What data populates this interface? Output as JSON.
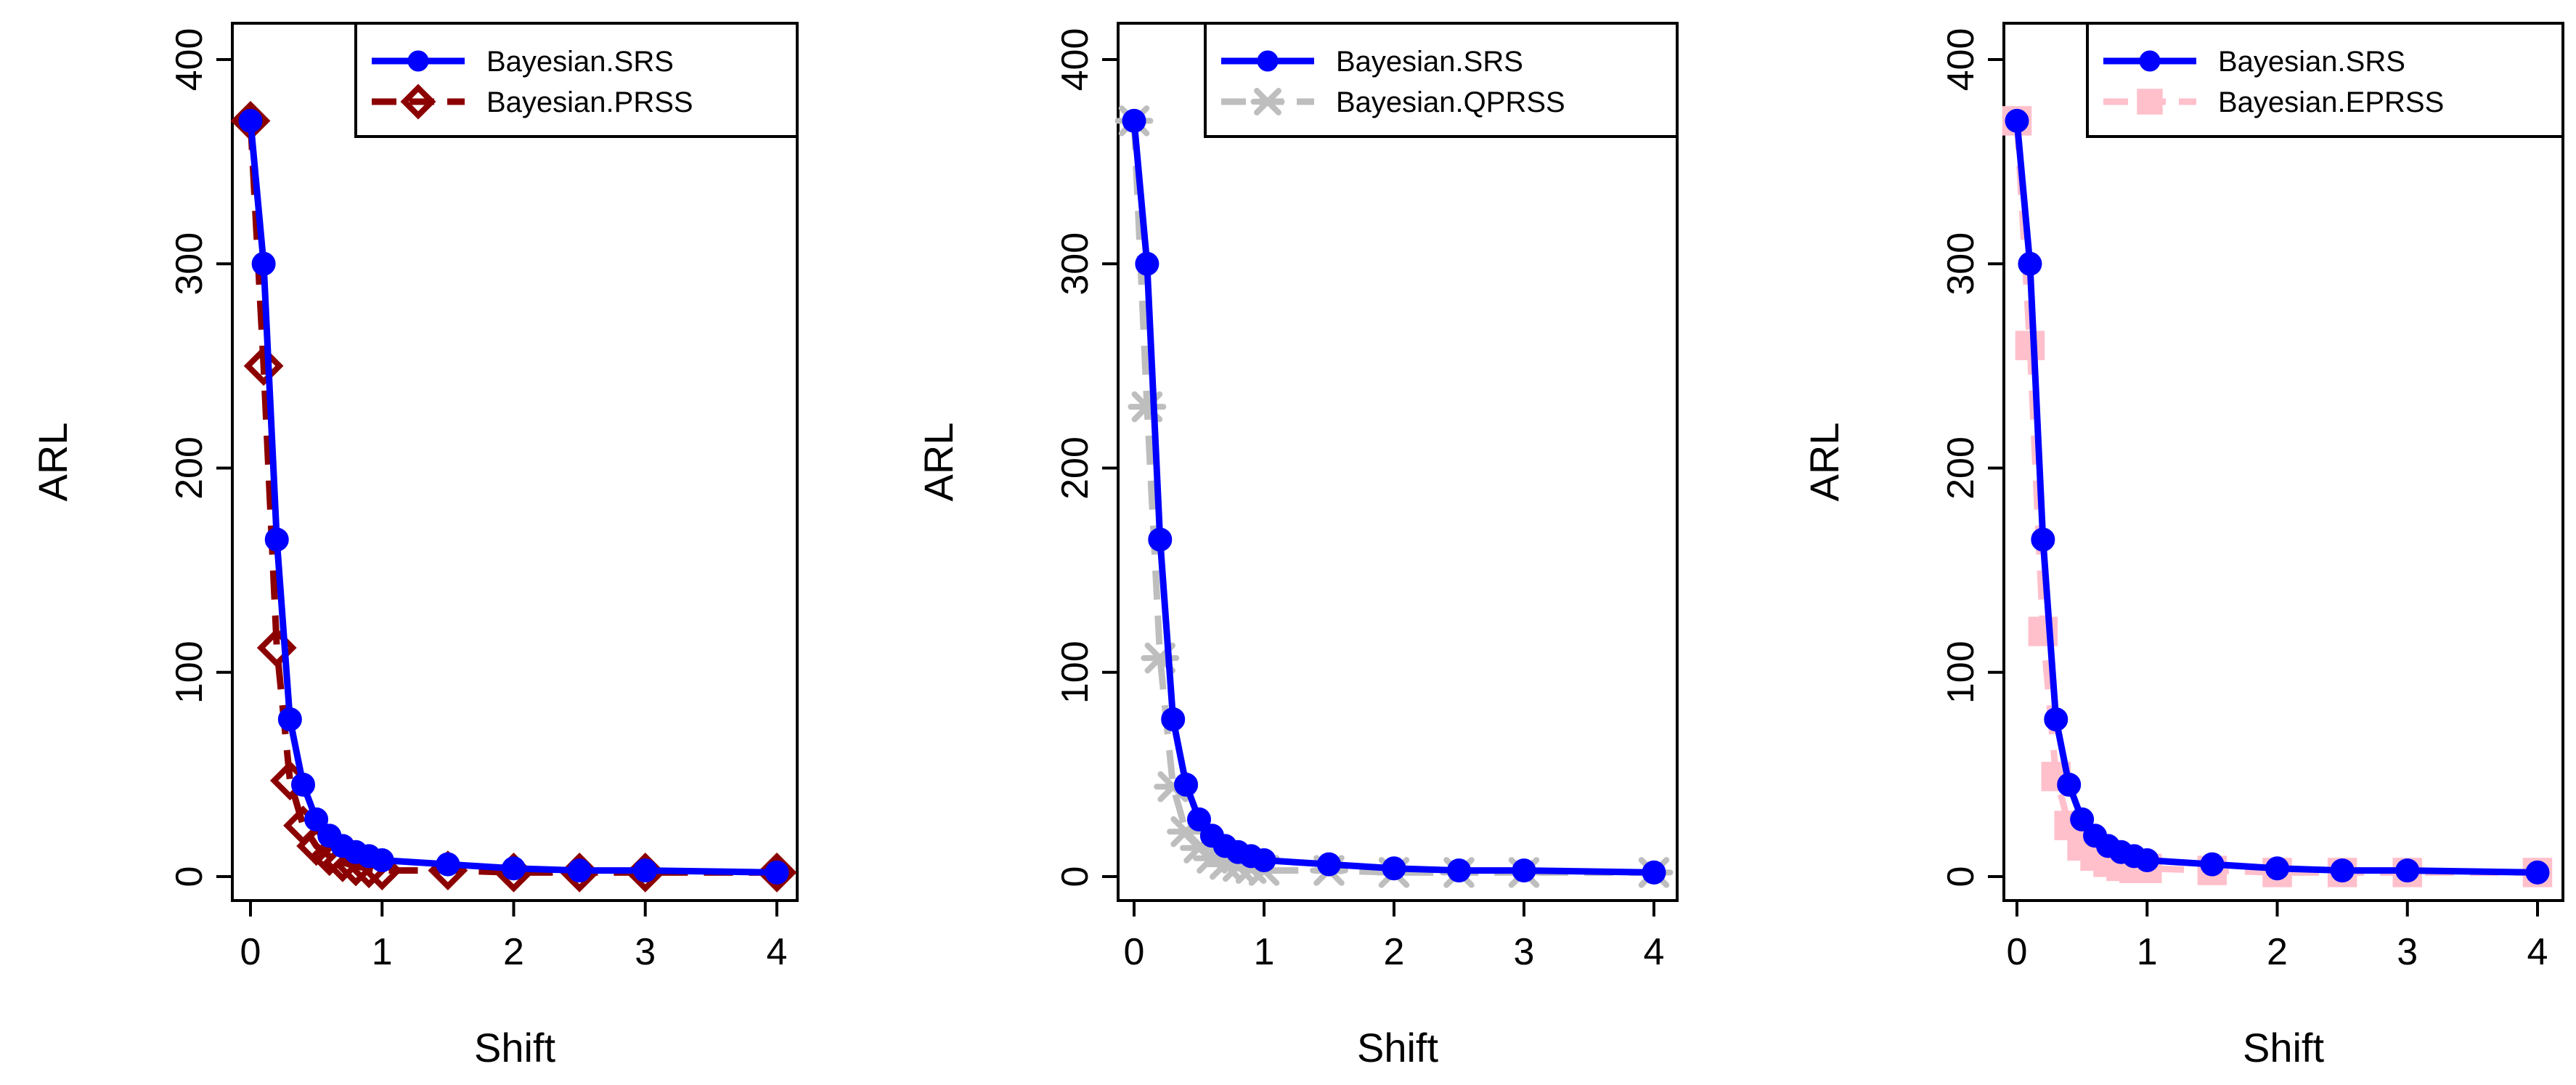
{
  "chart_data": [
    {
      "type": "line",
      "xlabel": "Shift",
      "ylabel": "ARL",
      "xlim": [
        0,
        4
      ],
      "ylim": [
        0,
        400
      ],
      "xticks": [
        "0",
        "1",
        "2",
        "3",
        "4"
      ],
      "yticks": [
        "0",
        "100",
        "200",
        "300",
        "400"
      ],
      "legend_position": "top-right",
      "grid": false,
      "series": [
        {
          "name": "Bayesian.SRS",
          "color": "#0000ff",
          "line_style": "solid",
          "marker": "filled-circle",
          "x": [
            0,
            0.1,
            0.2,
            0.3,
            0.4,
            0.5,
            0.6,
            0.7,
            0.8,
            0.9,
            1,
            1.5,
            2,
            2.5,
            3,
            4
          ],
          "y": [
            370,
            300,
            165,
            77,
            45,
            28,
            20,
            15,
            12,
            10,
            8,
            6,
            4,
            3,
            3,
            2
          ]
        },
        {
          "name": "Bayesian.PRSS",
          "color": "#8b0000",
          "line_style": "dashed",
          "marker": "diamond",
          "x": [
            0,
            0.1,
            0.2,
            0.3,
            0.4,
            0.5,
            0.6,
            0.7,
            0.8,
            0.9,
            1,
            1.5,
            2,
            2.5,
            3,
            4
          ],
          "y": [
            370,
            250,
            112,
            47,
            25,
            15,
            10,
            7,
            5,
            4,
            3,
            3,
            2,
            2,
            2,
            2
          ]
        }
      ]
    },
    {
      "type": "line",
      "xlabel": "Shift",
      "ylabel": "ARL",
      "xlim": [
        0,
        4
      ],
      "ylim": [
        0,
        400
      ],
      "xticks": [
        "0",
        "1",
        "2",
        "3",
        "4"
      ],
      "yticks": [
        "0",
        "100",
        "200",
        "300",
        "400"
      ],
      "legend_position": "top-right",
      "grid": false,
      "series": [
        {
          "name": "Bayesian.SRS",
          "color": "#0000ff",
          "line_style": "solid",
          "marker": "filled-circle",
          "x": [
            0,
            0.1,
            0.2,
            0.3,
            0.4,
            0.5,
            0.6,
            0.7,
            0.8,
            0.9,
            1,
            1.5,
            2,
            2.5,
            3,
            4
          ],
          "y": [
            370,
            300,
            165,
            77,
            45,
            28,
            20,
            15,
            12,
            10,
            8,
            6,
            4,
            3,
            3,
            2
          ]
        },
        {
          "name": "Bayesian.QPRSS",
          "color": "#bebebe",
          "line_style": "dashed",
          "marker": "asterisk",
          "x": [
            0,
            0.1,
            0.2,
            0.3,
            0.4,
            0.5,
            0.6,
            0.7,
            0.8,
            0.9,
            1,
            1.5,
            2,
            2.5,
            3,
            4
          ],
          "y": [
            370,
            230,
            107,
            44,
            22,
            14,
            9,
            6,
            5,
            4,
            3,
            3,
            2,
            2,
            2,
            2
          ]
        }
      ]
    },
    {
      "type": "line",
      "xlabel": "Shift",
      "ylabel": "ARL",
      "xlim": [
        0,
        4
      ],
      "ylim": [
        0,
        400
      ],
      "xticks": [
        "0",
        "1",
        "2",
        "3",
        "4"
      ],
      "yticks": [
        "0",
        "100",
        "200",
        "300",
        "400"
      ],
      "legend_position": "top-right",
      "grid": false,
      "series": [
        {
          "name": "Bayesian.SRS",
          "color": "#0000ff",
          "line_style": "solid",
          "marker": "filled-circle",
          "x": [
            0,
            0.1,
            0.2,
            0.3,
            0.4,
            0.5,
            0.6,
            0.7,
            0.8,
            0.9,
            1,
            1.5,
            2,
            2.5,
            3,
            4
          ],
          "y": [
            370,
            300,
            165,
            77,
            45,
            28,
            20,
            15,
            12,
            10,
            8,
            6,
            4,
            3,
            3,
            2
          ]
        },
        {
          "name": "Bayesian.EPRSS",
          "color": "#ffc0cb",
          "line_style": "dashed",
          "marker": "square",
          "x": [
            0,
            0.1,
            0.2,
            0.3,
            0.4,
            0.5,
            0.6,
            0.7,
            0.8,
            0.9,
            1,
            1.5,
            2,
            2.5,
            3,
            4
          ],
          "y": [
            370,
            260,
            120,
            49,
            25,
            15,
            10,
            7,
            5,
            4,
            4,
            3,
            2,
            2,
            2,
            2
          ]
        }
      ]
    }
  ]
}
